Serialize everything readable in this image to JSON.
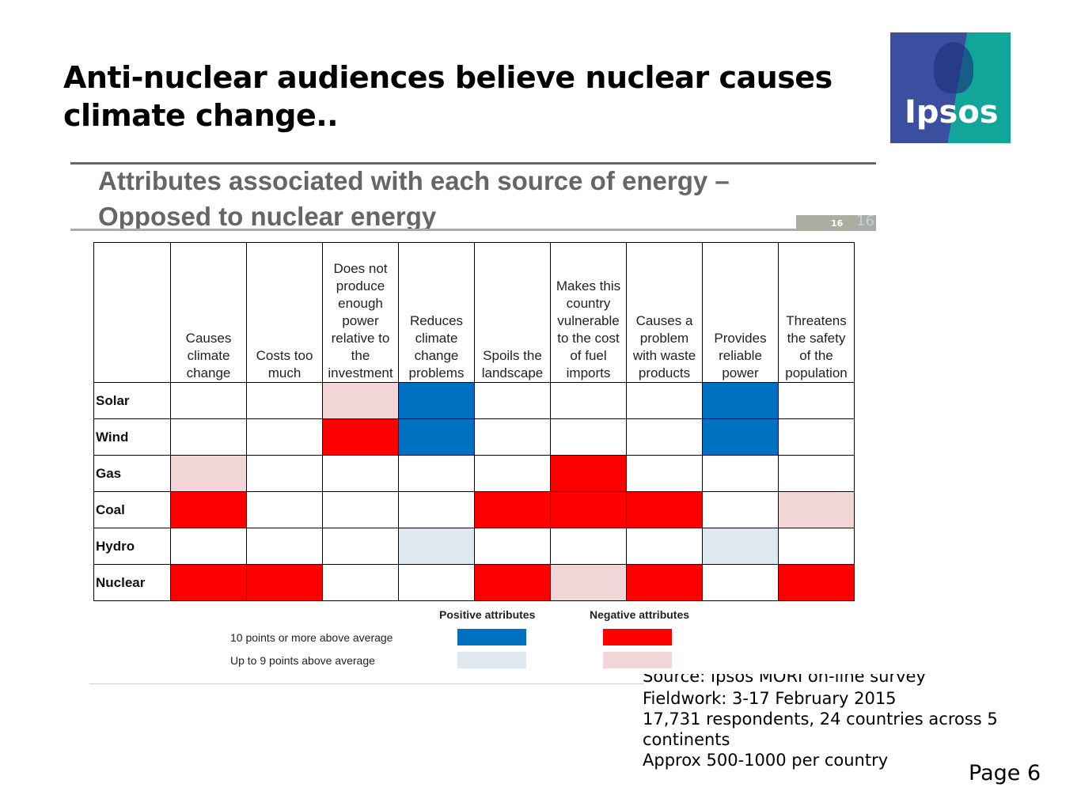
{
  "title_lines": [
    "Anti-nuclear audiences believe nuclear causes",
    "climate change.."
  ],
  "logo_text": "Ipsos",
  "subtitle_lines": [
    "Attributes associated with each source of energy –",
    "Opposed to nuclear energy"
  ],
  "slide_number": "16",
  "slide_number_ghost": "16",
  "chart_data": {
    "type": "heatmap",
    "columns": [
      [
        "Causes",
        "climate",
        "change"
      ],
      [
        "Costs too",
        "much"
      ],
      [
        "Does not",
        "produce",
        "enough",
        "power",
        "relative to",
        "the",
        "investment"
      ],
      [
        "Reduces",
        "climate",
        "change",
        "problems"
      ],
      [
        "Spoils the",
        "landscape"
      ],
      [
        "Makes this",
        "country",
        "vulnerable",
        "to the cost",
        "of fuel",
        "imports"
      ],
      [
        "Causes a",
        "problem",
        "with waste",
        "products"
      ],
      [
        "Provides",
        "reliable",
        "power"
      ],
      [
        "Threatens",
        "the safety",
        "of the",
        "population"
      ]
    ],
    "rows": [
      {
        "label": "Solar",
        "cells": [
          "",
          "",
          "neg_weak",
          "pos_strong",
          "",
          "",
          "",
          "pos_strong",
          ""
        ]
      },
      {
        "label": "Wind",
        "cells": [
          "",
          "",
          "neg_strong",
          "pos_strong",
          "",
          "",
          "",
          "pos_strong",
          ""
        ]
      },
      {
        "label": "Gas",
        "cells": [
          "neg_weak",
          "",
          "",
          "",
          "",
          "neg_strong",
          "",
          "",
          ""
        ]
      },
      {
        "label": "Coal",
        "cells": [
          "neg_strong",
          "",
          "",
          "",
          "neg_strong",
          "neg_strong",
          "neg_strong",
          "",
          "neg_weak"
        ]
      },
      {
        "label": "Hydro",
        "cells": [
          "",
          "",
          "",
          "pos_weak",
          "",
          "",
          "",
          "pos_weak",
          ""
        ]
      },
      {
        "label": "Nuclear",
        "cells": [
          "neg_strong",
          "neg_strong",
          "",
          "",
          "neg_strong",
          "neg_weak",
          "neg_strong",
          "",
          "neg_strong"
        ]
      }
    ],
    "colors": {
      "neg_strong": "#ff0000",
      "neg_weak": "#f2d5d7",
      "pos_strong": "#0070c0",
      "pos_weak": "#dde8f1"
    },
    "legend": {
      "positive_header": "Positive attributes",
      "negative_header": "Negative attributes",
      "strong_label": "10 points or more above average",
      "weak_label": "Up to 9 points above average"
    }
  },
  "source_lines": [
    "Source: Ipsos MORI on-line survey",
    "Fieldwork: 3-17 February 2015",
    "17,731 respondents, 24 countries across 5 continents",
    "Approx 500-1000 per country"
  ],
  "page_label": "Page 6"
}
